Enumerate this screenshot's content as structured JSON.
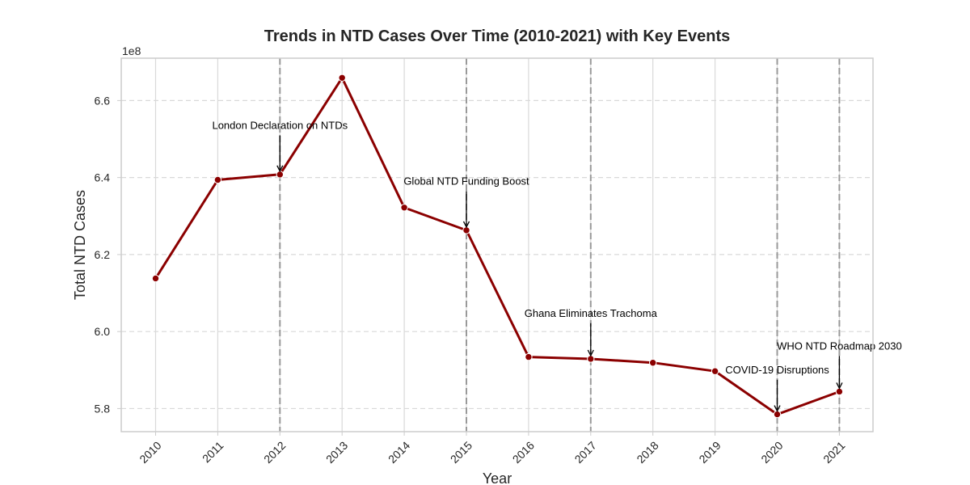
{
  "chart_data": {
    "type": "line",
    "title": "Trends in NTD Cases Over Time (2010-2021) with Key Events",
    "xlabel": "Year",
    "ylabel": "Total NTD Cases",
    "y_offset_label": "1e8",
    "ylim": [
      5.74,
      6.71
    ],
    "y_ticks": [
      5.8,
      6.0,
      6.2,
      6.4,
      6.6
    ],
    "y_tick_labels": [
      "5.8",
      "6.0",
      "6.2",
      "6.4",
      "6.6"
    ],
    "categories": [
      "2010",
      "2011",
      "2012",
      "2013",
      "2014",
      "2015",
      "2016",
      "2017",
      "2018",
      "2019",
      "2020",
      "2021"
    ],
    "series": [
      {
        "values": [
          6.138,
          6.394,
          6.408,
          6.659,
          6.322,
          6.263,
          5.934,
          5.929,
          5.919,
          5.897,
          5.785,
          5.844
        ],
        "color": "#8b0000"
      }
    ],
    "events": [
      {
        "year": "2012",
        "label": "London Declaration on NTDs",
        "text_y": 6.535
      },
      {
        "year": "2015",
        "label": "Global NTD Funding Boost",
        "text_y": 6.39
      },
      {
        "year": "2017",
        "label": "Ghana Eliminates Trachoma",
        "text_y": 6.047
      },
      {
        "year": "2020",
        "label": "COVID-19 Disruptions",
        "text_y": 5.9
      },
      {
        "year": "2021",
        "label": "WHO NTD Roadmap 2030",
        "text_y": 5.962
      }
    ],
    "grid": true,
    "event_line_color": "#999999"
  }
}
